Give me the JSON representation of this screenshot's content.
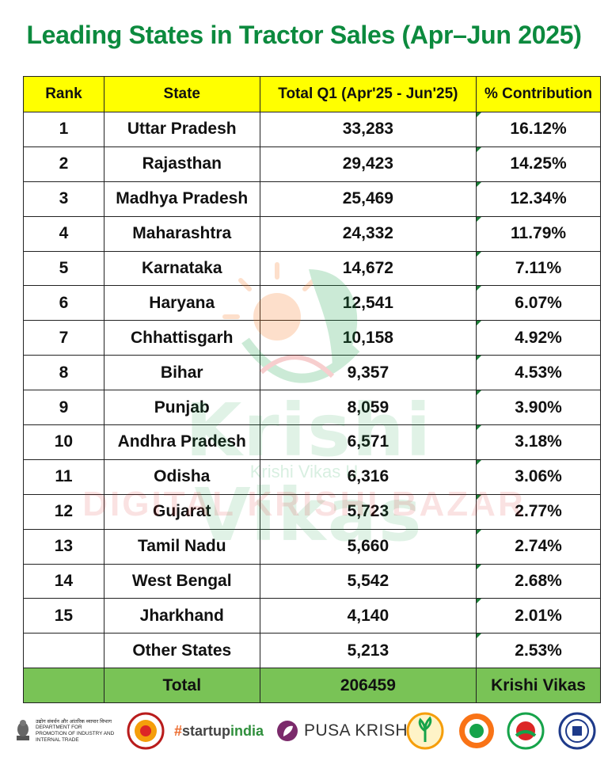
{
  "title": "Leading States in Tractor Sales (Apr–Jun 2025)",
  "table": {
    "headers": [
      "Rank",
      "State",
      "Total Q1 (Apr'25 - Jun'25)",
      "% Contribution"
    ],
    "rows": [
      {
        "rank": "1",
        "state": "Uttar Pradesh",
        "total": "33,283",
        "pct": "16.12%"
      },
      {
        "rank": "2",
        "state": "Rajasthan",
        "total": "29,423",
        "pct": "14.25%"
      },
      {
        "rank": "3",
        "state": "Madhya Pradesh",
        "total": "25,469",
        "pct": "12.34%"
      },
      {
        "rank": "4",
        "state": "Maharashtra",
        "total": "24,332",
        "pct": "11.79%"
      },
      {
        "rank": "5",
        "state": "Karnataka",
        "total": "14,672",
        "pct": "7.11%"
      },
      {
        "rank": "6",
        "state": "Haryana",
        "total": "12,541",
        "pct": "6.07%"
      },
      {
        "rank": "7",
        "state": "Chhattisgarh",
        "total": "10,158",
        "pct": "4.92%"
      },
      {
        "rank": "8",
        "state": "Bihar",
        "total": "9,357",
        "pct": "4.53%"
      },
      {
        "rank": "9",
        "state": "Punjab",
        "total": "8,059",
        "pct": "3.90%"
      },
      {
        "rank": "10",
        "state": "Andhra Pradesh",
        "total": "6,571",
        "pct": "3.18%"
      },
      {
        "rank": "11",
        "state": "Odisha",
        "total": "6,316",
        "pct": "3.06%"
      },
      {
        "rank": "12",
        "state": "Gujarat",
        "total": "5,723",
        "pct": "2.77%"
      },
      {
        "rank": "13",
        "state": "Tamil Nadu",
        "total": "5,660",
        "pct": "2.74%"
      },
      {
        "rank": "14",
        "state": "West Bengal",
        "total": "5,542",
        "pct": "2.68%"
      },
      {
        "rank": "15",
        "state": "Jharkhand",
        "total": "4,140",
        "pct": "2.01%"
      },
      {
        "rank": "",
        "state": "Other States",
        "total": "5,213",
        "pct": "2.53%"
      }
    ],
    "total_row": {
      "rank": "",
      "state": "Total",
      "total": "206459",
      "pct": "Krishi Vikas"
    }
  },
  "watermark": {
    "brand": "Krishi Vikas",
    "sub": "Krishi Vikas U",
    "bazar": "DIGITAL KRISHI BAZAR"
  },
  "footer": {
    "dpiit_hindi": "उद्योग संवर्धन और आंतरिक व्यापार विभाग",
    "dpiit_lines": [
      "DEPARTMENT FOR",
      "PROMOTION OF INDUSTRY AND",
      "INTERNAL TRADE"
    ],
    "startup_hash": "#",
    "startup_main": "startup",
    "startup_india": "india",
    "pusa": "PUSA KRISHI"
  },
  "colors": {
    "title": "#0c8a3e",
    "header_bg": "#ffff00",
    "total_bg": "#79c356",
    "cell_marker": "#1a7f37"
  }
}
